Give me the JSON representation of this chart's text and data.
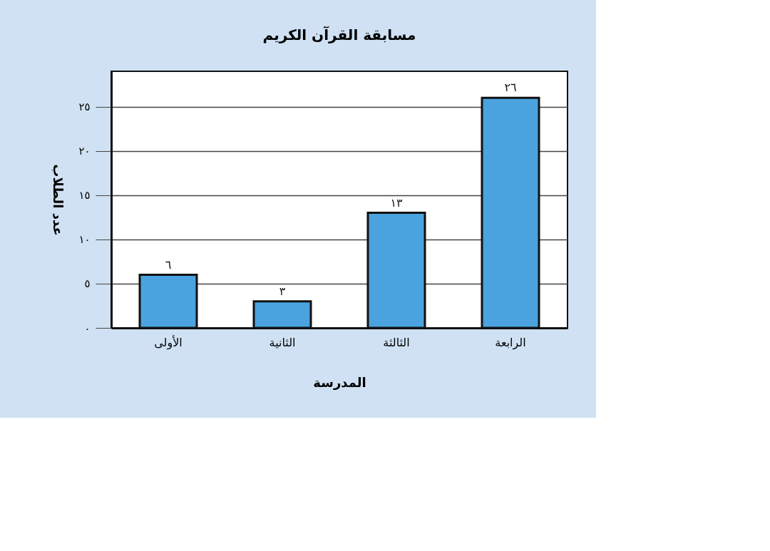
{
  "chart_data": {
    "type": "bar",
    "title": "مسابقة القرآن الكريم",
    "xlabel": "المدرسة",
    "ylabel": "عدد الطلاب",
    "categories": [
      "الأولى",
      "الثانية",
      "الثالثة",
      "الرابعة"
    ],
    "values": [
      6,
      3,
      13,
      26
    ],
    "value_labels": [
      "٦",
      "٣",
      "١٣",
      "٢٦"
    ],
    "color": "#4aa3df",
    "ylim": [
      0,
      29
    ],
    "yticks": [
      {
        "value": 0,
        "label": "٠"
      },
      {
        "value": 5,
        "label": "٥"
      },
      {
        "value": 10,
        "label": "١٠"
      },
      {
        "value": 15,
        "label": "١٥"
      },
      {
        "value": 20,
        "label": "٢٠"
      },
      {
        "value": 25,
        "label": "٢٥"
      }
    ],
    "grid": "y"
  }
}
